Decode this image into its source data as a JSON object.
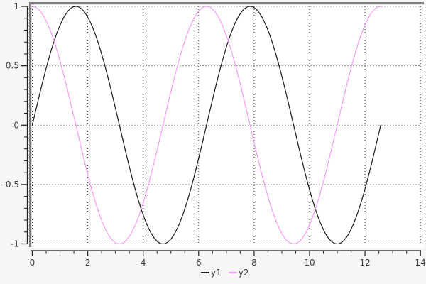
{
  "chart_data": {
    "type": "line",
    "title": "",
    "x_axis": {
      "min": 0,
      "max": 14,
      "major_tick_values": [
        0,
        2,
        4,
        6,
        8,
        10,
        12,
        14
      ],
      "major_tick_labels": [
        "0",
        "2",
        "4",
        "6",
        "8",
        "10",
        "12",
        "14"
      ],
      "minor_tick_step": 0.5,
      "grid": true
    },
    "y_axis": {
      "min": -1,
      "max": 1,
      "major_tick_values": [
        1,
        0.5,
        0,
        -0.5,
        -1
      ],
      "major_tick_labels": [
        "1",
        "0.5",
        "0",
        "-0.5",
        "-1"
      ],
      "minor_tick_step": 0.1,
      "grid": true
    },
    "grid_style": "dotted",
    "series": [
      {
        "name": "y1",
        "color": "#1a1a1a",
        "function": "sin",
        "x_start": 0,
        "x_end": 12.5664,
        "sample_step": 0.04
      },
      {
        "name": "y2",
        "color": "#f49ef4",
        "function": "cos",
        "x_start": 0,
        "x_end": 12.5664,
        "sample_step": 0.04
      }
    ],
    "legend": {
      "position": "bottom-center",
      "items": [
        "y1",
        "y2"
      ]
    }
  },
  "colors": {
    "background": "#f6f6f7",
    "plot_background": "#ffffff",
    "frame": "#7f7f7f",
    "axis": "#1c1c1c",
    "grid": "#3a3a3a",
    "tick_label": "#3c3c3c"
  }
}
